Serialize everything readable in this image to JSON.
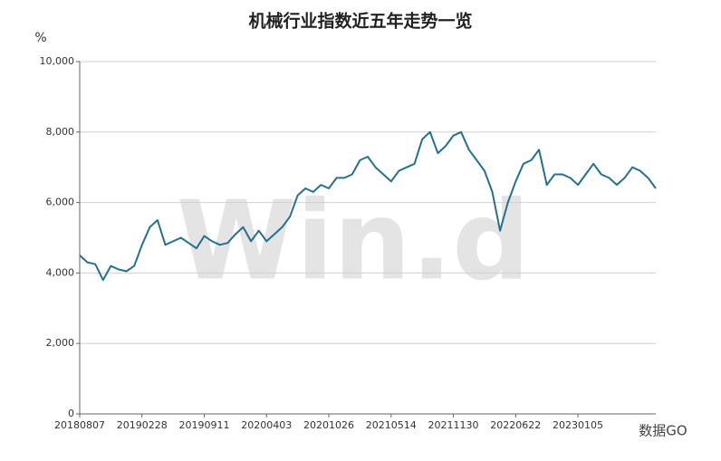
{
  "chart_data": {
    "type": "line",
    "title": "机械行业指数近五年走势一览",
    "y_label": "%",
    "watermark": "Win.d",
    "source_mark": "数据GO",
    "categories": [
      "20180807",
      null,
      null,
      null,
      null,
      null,
      null,
      null,
      "20190228",
      null,
      null,
      null,
      null,
      null,
      null,
      null,
      "20190911",
      null,
      null,
      null,
      null,
      null,
      null,
      null,
      "20200403",
      null,
      null,
      null,
      null,
      null,
      null,
      null,
      "20201026",
      null,
      null,
      null,
      null,
      null,
      null,
      null,
      "20210514",
      null,
      null,
      null,
      null,
      null,
      null,
      null,
      "20211130",
      null,
      null,
      null,
      null,
      null,
      null,
      null,
      "20220622",
      null,
      null,
      null,
      null,
      null,
      null,
      null,
      "20230105",
      null,
      null,
      null,
      null,
      null,
      null,
      null,
      null,
      null,
      null
    ],
    "series": [
      {
        "name": "机械行业指数",
        "color": "#24718f",
        "values": [
          4500,
          4300,
          4250,
          3800,
          4200,
          4100,
          4050,
          4200,
          4800,
          5300,
          5500,
          4800,
          4900,
          5000,
          4850,
          4700,
          5050,
          4900,
          4800,
          4850,
          5100,
          5300,
          4900,
          5200,
          4900,
          5100,
          5300,
          5600,
          6200,
          6400,
          6300,
          6500,
          6400,
          6700,
          6700,
          6800,
          7200,
          7300,
          7000,
          6800,
          6600,
          6900,
          7000,
          7100,
          7800,
          8000,
          7400,
          7600,
          7900,
          8000,
          7500,
          7200,
          6900,
          6300,
          5200,
          6000,
          6600,
          7100,
          7200,
          7500,
          6500,
          6800,
          6800,
          6700,
          6500,
          6800,
          7100,
          6800,
          6700,
          6500,
          6700,
          7000,
          6900,
          6700,
          6400
        ]
      }
    ],
    "ylim": [
      0,
      10000
    ],
    "yticks": [
      0,
      {
        "value": 2000,
        "label": "2,000"
      },
      {
        "value": 4000,
        "label": "4,000"
      },
      {
        "value": 6000,
        "label": "6,000"
      },
      {
        "value": 8000,
        "label": "8,000"
      },
      {
        "value": 10000,
        "label": "10,000"
      }
    ],
    "grid": true
  }
}
